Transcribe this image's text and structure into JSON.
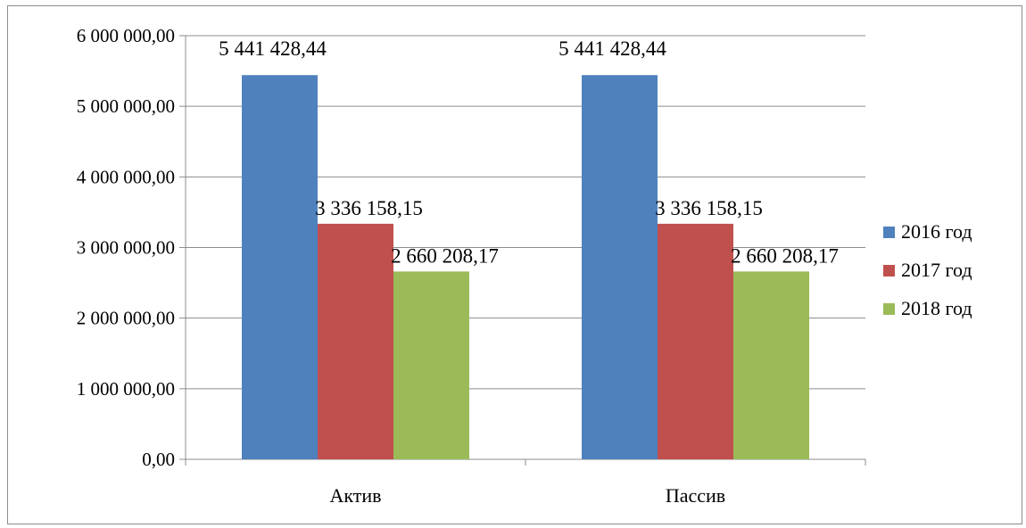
{
  "chart_data": {
    "type": "bar",
    "categories": [
      "Актив",
      "Пассив"
    ],
    "series": [
      {
        "name": "2016 год",
        "color": "#4F81BD",
        "values": [
          5441428.44,
          5441428.44
        ],
        "labels": [
          "5 441 428,44",
          "5 441 428,44"
        ]
      },
      {
        "name": "2017 год",
        "color": "#C0504D",
        "values": [
          3336158.15,
          3336158.15
        ],
        "labels": [
          "3 336 158,15",
          "3 336 158,15"
        ]
      },
      {
        "name": "2018 год",
        "color": "#9BBB59",
        "values": [
          2660208.17,
          2660208.17
        ],
        "labels": [
          "2 660 208,17",
          "2 660 208,17"
        ]
      }
    ],
    "ylim": [
      0,
      6000000
    ],
    "yticks": [
      {
        "value": 0,
        "label": "0,00"
      },
      {
        "value": 1000000,
        "label": "1 000 000,00"
      },
      {
        "value": 2000000,
        "label": "2 000 000,00"
      },
      {
        "value": 3000000,
        "label": "3 000 000,00"
      },
      {
        "value": 4000000,
        "label": "4 000 000,00"
      },
      {
        "value": 5000000,
        "label": "5 000 000,00"
      },
      {
        "value": 6000000,
        "label": "6 000 000,00"
      }
    ],
    "grid": true,
    "legend_position": "right",
    "title": "",
    "xlabel": "",
    "ylabel": ""
  }
}
